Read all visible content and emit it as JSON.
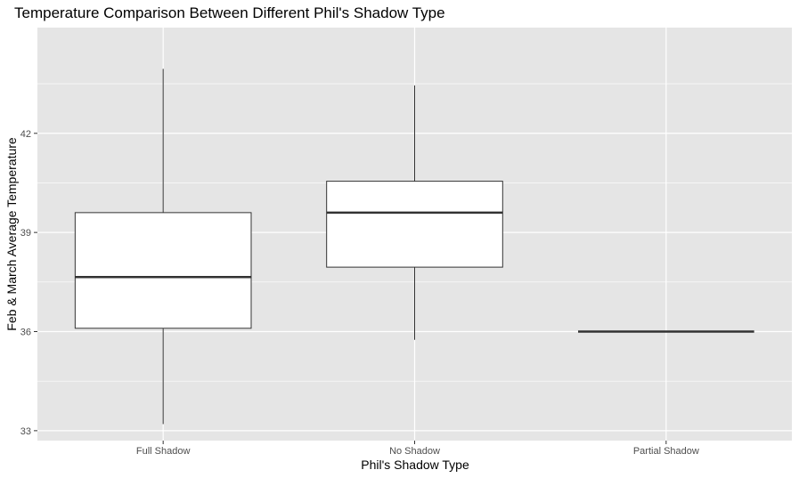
{
  "colors": {
    "panel_background": "#e5e5e5",
    "grid_line": "#ffffff",
    "box_fill": "#ffffff",
    "box_stroke": "#333333",
    "tick_mark": "#333333",
    "tick_text": "#4d4d4d"
  },
  "chart_data": {
    "type": "box",
    "title": "Temperature Comparison Between Different Phil's Shadow Type",
    "xlabel": "Phil's Shadow Type",
    "ylabel": "Feb & March Average Temperature",
    "ylim": [
      32.7,
      45.2
    ],
    "yticks": [
      33,
      36,
      39,
      42
    ],
    "grid": true,
    "legend": "none",
    "categories": [
      "Full Shadow",
      "No Shadow",
      "Partial Shadow"
    ],
    "boxes": [
      {
        "category": "Full Shadow",
        "whisker_low": 33.2,
        "q1": 36.1,
        "median": 37.65,
        "q3": 39.6,
        "whisker_high": 43.95
      },
      {
        "category": "No Shadow",
        "whisker_low": 35.75,
        "q1": 37.95,
        "median": 39.6,
        "q3": 40.55,
        "whisker_high": 43.45
      },
      {
        "category": "Partial Shadow",
        "whisker_low": 36.0,
        "q1": 36.0,
        "median": 36.0,
        "q3": 36.0,
        "whisker_high": 36.0
      }
    ]
  }
}
